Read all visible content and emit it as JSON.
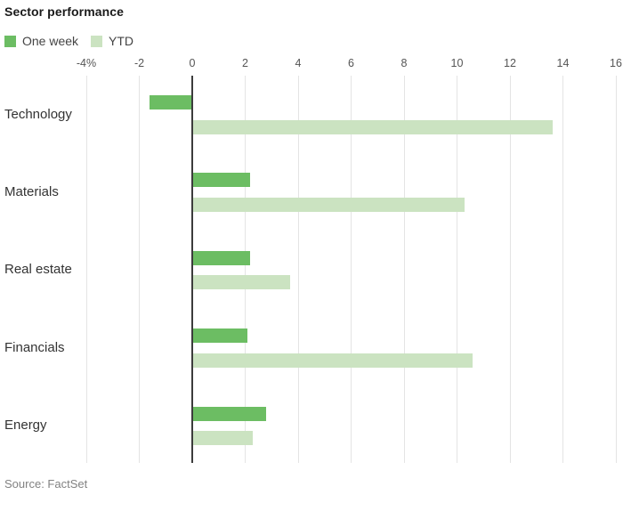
{
  "title": "Sector performance",
  "source": "Source: FactSet",
  "legend": [
    {
      "label": "One week",
      "color": "#6cbd63"
    },
    {
      "label": "YTD",
      "color": "#cbe3c1"
    }
  ],
  "colors": {
    "one_week_bar": "#6cbd63",
    "ytd_bar": "#cbe3c1",
    "gridline": "#e4e4e4",
    "zero_line": "#3c3c3c",
    "title_text": "#1a1a1a",
    "axis_text": "#555555",
    "category_text": "#333333",
    "source_text": "#828282"
  },
  "chart_data": {
    "type": "bar",
    "orientation": "horizontal",
    "title": "Sector performance",
    "categories": [
      "Technology",
      "Materials",
      "Real estate",
      "Financials",
      "Energy"
    ],
    "series": [
      {
        "name": "One week",
        "color": "#6cbd63",
        "values": [
          -1.6,
          2.2,
          2.2,
          2.1,
          2.8
        ]
      },
      {
        "name": "YTD",
        "color": "#cbe3c1",
        "values": [
          13.6,
          10.3,
          3.7,
          10.6,
          2.3
        ]
      }
    ],
    "xlim": [
      -4,
      16
    ],
    "x_ticks": [
      -4,
      -2,
      0,
      2,
      4,
      6,
      8,
      10,
      12,
      14,
      16
    ],
    "x_tick_labels": [
      "-4%",
      "-2",
      "0",
      "2",
      "4",
      "6",
      "8",
      "10",
      "12",
      "14",
      "16"
    ],
    "unit": "percent",
    "grid": true,
    "legend_position": "top-left",
    "source": "Source: FactSet"
  }
}
